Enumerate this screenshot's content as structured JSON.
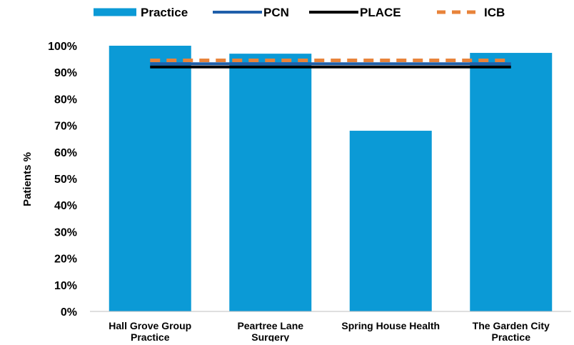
{
  "chart_data": {
    "type": "bar",
    "categories": [
      [
        "Hall Grove Group",
        "Practice"
      ],
      [
        "Peartree Lane",
        "Surgery"
      ],
      [
        "Spring House Health"
      ],
      [
        "The Garden City",
        "Practice"
      ]
    ],
    "series": [
      {
        "name": "Practice",
        "kind": "bar",
        "color": "#0B9AD6",
        "values": [
          100,
          97,
          68,
          97.3
        ]
      },
      {
        "name": "PCN",
        "kind": "line",
        "color": "#1F5FAA",
        "value": 93.2
      },
      {
        "name": "PLACE",
        "kind": "line",
        "color": "#000000",
        "value": 92.0
      },
      {
        "name": "ICB",
        "kind": "dashed-line",
        "color": "#E8833A",
        "value": 94.5
      }
    ],
    "ylabel": "Patients %",
    "ylim": [
      0,
      100
    ],
    "yticks": [
      "0%",
      "10%",
      "20%",
      "30%",
      "40%",
      "50%",
      "60%",
      "70%",
      "80%",
      "90%",
      "100%"
    ],
    "legend_position": "top",
    "grid": false
  }
}
